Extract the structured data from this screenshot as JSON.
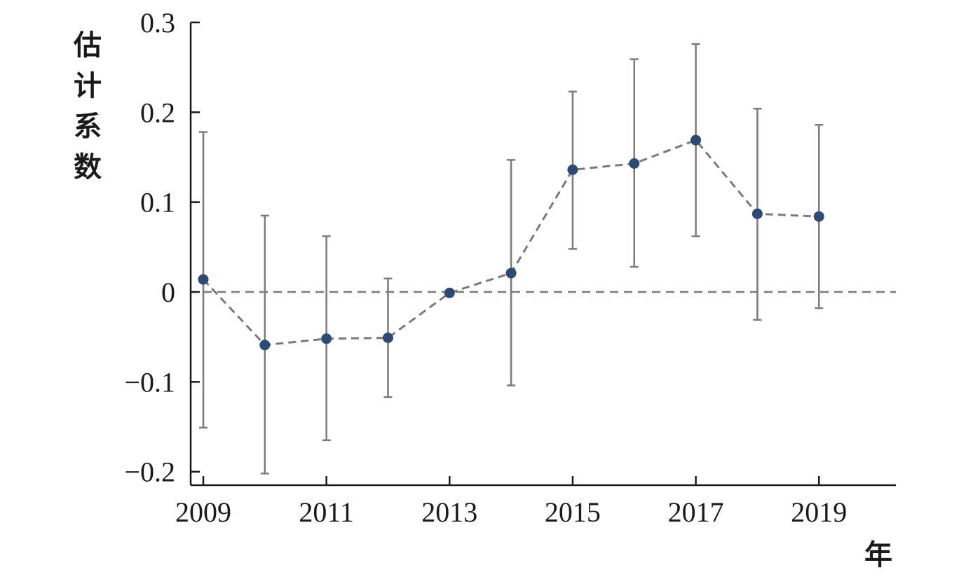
{
  "chart_data": {
    "type": "line",
    "title": "",
    "xlabel": "年",
    "ylabel": "估计系数",
    "x_ticks": [
      "2009",
      "2011",
      "2013",
      "2015",
      "2017",
      "2019"
    ],
    "y_ticks": [
      "0.3",
      "0.2",
      "0.1",
      "0",
      "−0.1",
      "−0.2"
    ],
    "xlim": [
      2009,
      2020.25
    ],
    "ylim": [
      -0.215,
      0.3
    ],
    "grid": false,
    "reference_line": {
      "y": 0,
      "style": "dashed"
    },
    "series": [
      {
        "x": [
          2009,
          2010,
          2011,
          2012,
          2013,
          2014,
          2015,
          2016,
          2017,
          2018,
          2019
        ],
        "y": [
          0.014,
          -0.059,
          -0.052,
          -0.051,
          -0.001,
          0.021,
          0.136,
          0.143,
          0.169,
          0.087,
          0.084
        ],
        "lower": [
          -0.151,
          -0.202,
          -0.165,
          -0.117,
          -0.001,
          -0.104,
          0.048,
          0.028,
          0.062,
          -0.031,
          -0.018
        ],
        "upper": [
          0.178,
          0.085,
          0.062,
          0.015,
          -0.001,
          0.147,
          0.223,
          0.259,
          0.276,
          0.204,
          0.186
        ]
      }
    ],
    "colors": {
      "point": "#2d4a72",
      "line": "#7a7a7a",
      "errorbar": "#7a7a7a",
      "axis": "#1a1a1a"
    }
  }
}
